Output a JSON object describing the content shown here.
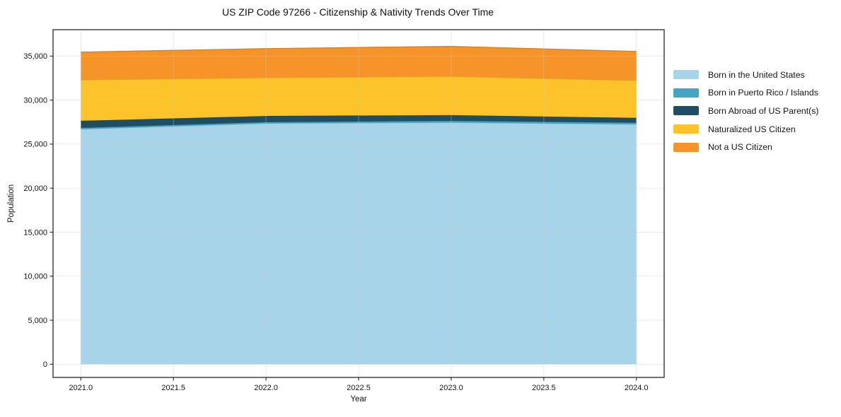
{
  "chart_data": {
    "type": "area",
    "stacked": true,
    "title": "US ZIP Code 97266 - Citizenship & Nativity Trends Over Time",
    "xlabel": "Year",
    "ylabel": "Population",
    "x": [
      2021,
      2022,
      2023,
      2024
    ],
    "series": [
      {
        "name": "Born in the United States",
        "color": "#a8d4e9",
        "values": [
          26700,
          27350,
          27450,
          27250
        ]
      },
      {
        "name": "Born in Puerto Rico / Islands",
        "color": "#42a7c5",
        "values": [
          150,
          150,
          200,
          180
        ]
      },
      {
        "name": "Born Abroad of US Parent(s)",
        "color": "#1f4e63",
        "values": [
          800,
          700,
          650,
          550
        ]
      },
      {
        "name": "Naturalized US Citizen",
        "color": "#fdc32b",
        "values": [
          4650,
          4350,
          4400,
          4250
        ]
      },
      {
        "name": "Not a US Citizen",
        "color": "#f79429",
        "values": [
          3150,
          3300,
          3400,
          3300
        ]
      }
    ],
    "xlim": [
      2020.85,
      2024.15
    ],
    "ylim": [
      -1500,
      38000
    ],
    "xticks": {
      "values": [
        2021,
        2021.5,
        2022,
        2022.5,
        2023,
        2023.5,
        2024
      ],
      "labels": [
        "2021.0",
        "2021.5",
        "2022.0",
        "2022.5",
        "2023.0",
        "2023.5",
        "2024.0"
      ]
    },
    "yticks": {
      "values": [
        0,
        5000,
        10000,
        15000,
        20000,
        25000,
        30000,
        35000
      ],
      "labels": [
        "0",
        "5,000",
        "10,000",
        "15,000",
        "20,000",
        "25,000",
        "30,000",
        "35,000"
      ]
    },
    "grid": true,
    "grid_on_top": true,
    "legend_position": "right"
  }
}
